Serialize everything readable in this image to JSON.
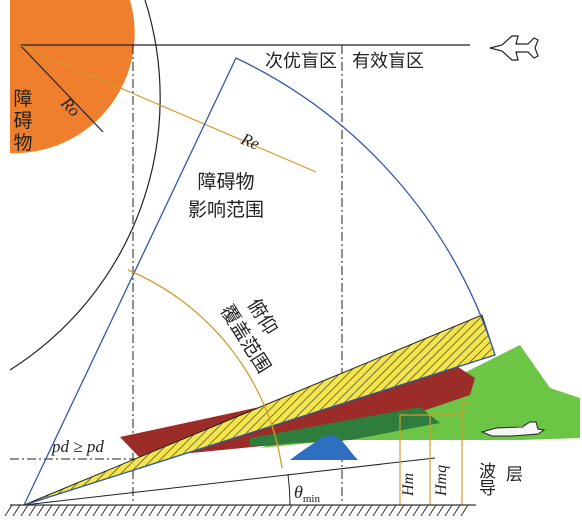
{
  "labels": {
    "obstacle": [
      "障",
      "碍",
      "物"
    ],
    "ro": "Ro",
    "re": "Re",
    "secondary_blind_zone": "次优盲区",
    "effective_blind_zone": "有效盲区",
    "obstacle_influence_line1": "障碍物",
    "obstacle_influence_line2": "影响范围",
    "pitch_coverage_line1": "俯仰",
    "pitch_coverage_line2": "覆盖范围",
    "pd_condition": "pd ≥ pd",
    "theta_symbol": "θ",
    "theta_subscript": "min",
    "hm": "Hm",
    "hmq": "Hmq",
    "duct_layer_line1": "波导",
    "duct_layer_line2": "层"
  },
  "icons": {
    "fighter_top": "fighter-jet-top-view-icon",
    "fighter_side": "fighter-jet-side-view-icon"
  },
  "colors": {
    "obstacle": "#f07f2d",
    "coverage_outline": "#2f5ba8",
    "radius_line": "#d49b2d",
    "hatch_fill": "#f4e64a",
    "duct_dark_red": "#9b2c27",
    "green_beam": "#6cc544",
    "dark_green": "#2f7d3c",
    "bump_blue": "#2f6fc0",
    "ground": "#333333"
  }
}
